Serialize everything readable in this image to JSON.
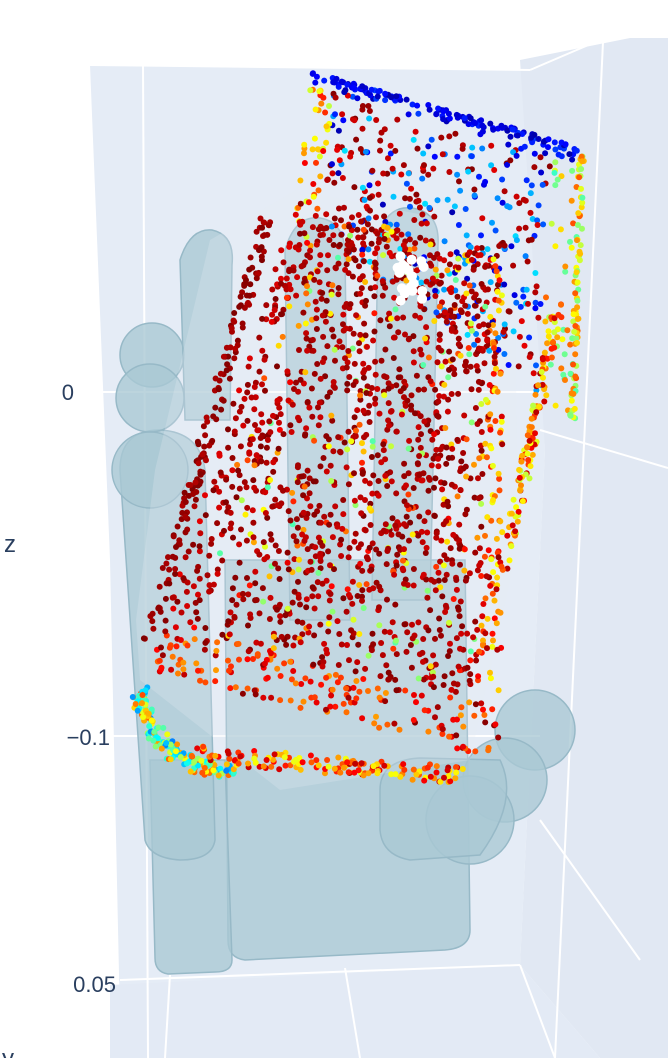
{
  "chart_data": {
    "type": "scatter",
    "subtype": "3d-point-cloud",
    "axes": {
      "z": {
        "label": "z",
        "ticks": [
          "0",
          "−0.1"
        ],
        "tick_values": [
          0,
          -0.1
        ]
      },
      "y": {
        "label": "y",
        "ticks": [
          "0.05"
        ],
        "tick_values": [
          0.05
        ]
      }
    },
    "grid": true,
    "legend": "none",
    "colorscale": "jet",
    "colors": {
      "scene_background": "#e5ecf6",
      "gridline": "#ffffff",
      "hand_mesh": "#a9c8d4",
      "tick_text": "#2a3f5f"
    },
    "series": [
      {
        "kind": "point-cloud",
        "approx_points": 2400,
        "colorscale": "jet"
      },
      {
        "kind": "mesh"
      }
    ]
  }
}
